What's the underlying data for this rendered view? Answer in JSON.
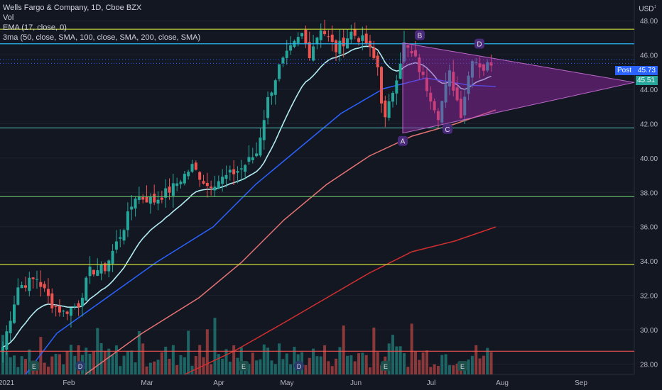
{
  "header": {
    "title": "Wells Fargo & Company, 1D, Cboe BZX",
    "indicators": [
      "Vol",
      "EMA (17, close, 0)",
      "3ma (50, close, SMA, 100, close, SMA, 200, close, SMA)"
    ],
    "currency": "USD"
  },
  "badges": {
    "post_label": "Post",
    "post_value": "45.73",
    "last_value": "45.51"
  },
  "colors": {
    "background": "#131722",
    "up": "#26a69a",
    "down": "#ef5350",
    "ema": "#b2ebf2",
    "ma50": "#2962ff",
    "ma100": "#e57373",
    "ma200": "#d32f2f",
    "triangle": "#9c27b0"
  },
  "chart_data": {
    "type": "candlestick",
    "y_axis": {
      "min": 27.4,
      "max": 49.2,
      "ticks": [
        28,
        30,
        32,
        34,
        36,
        38,
        40,
        42,
        44,
        46,
        48
      ]
    },
    "x_axis": {
      "labels": [
        "2021",
        "Feb",
        "Mar",
        "Apr",
        "May",
        "Jun",
        "Jul",
        "Aug",
        "Sep"
      ]
    },
    "horizontal_levels": [
      {
        "value": 47.5,
        "color": "#cddc39"
      },
      {
        "value": 46.65,
        "color": "#29b6f6"
      },
      {
        "value": 41.75,
        "color": "#4db6ac"
      },
      {
        "value": 37.75,
        "color": "#66bb6a"
      },
      {
        "value": 33.8,
        "color": "#cddc39"
      },
      {
        "value": 28.75,
        "color": "#ef5350"
      }
    ],
    "pattern_points": [
      {
        "label": "A",
        "value": 41.45
      },
      {
        "label": "B",
        "value": 46.7
      },
      {
        "label": "C",
        "value": 42.15
      },
      {
        "label": "D",
        "value": 46.2
      }
    ],
    "triangle": {
      "upper_start": 46.7,
      "lower_start": 41.45,
      "apex": 44.4
    },
    "earnings_markers": [
      "E",
      "D",
      "E",
      "D",
      "E",
      "E"
    ],
    "price_path": [
      [
        0,
        29.0
      ],
      [
        4,
        32.5
      ],
      [
        9,
        33.0
      ],
      [
        13,
        31.5
      ],
      [
        16,
        31.0
      ],
      [
        20,
        31.5
      ],
      [
        23,
        33.4
      ],
      [
        27,
        33.6
      ],
      [
        32,
        36.0
      ],
      [
        35,
        37.8
      ],
      [
        40,
        37.5
      ],
      [
        45,
        38.3
      ],
      [
        50,
        39.5
      ],
      [
        54,
        38.4
      ],
      [
        58,
        38.8
      ],
      [
        63,
        39.4
      ],
      [
        67,
        40.3
      ],
      [
        70,
        43.4
      ],
      [
        73,
        45.3
      ],
      [
        76,
        46.3
      ],
      [
        79,
        47.2
      ],
      [
        81,
        46.1
      ],
      [
        84,
        47.6
      ],
      [
        88,
        46.3
      ],
      [
        92,
        47.3
      ],
      [
        96,
        46.7
      ],
      [
        99,
        45.3
      ],
      [
        100,
        43.4
      ],
      [
        101,
        42.2
      ],
      [
        104,
        44.8
      ],
      [
        106,
        46.6
      ],
      [
        109,
        45.7
      ],
      [
        112,
        44.1
      ],
      [
        115,
        42.5
      ],
      [
        118,
        44.9
      ],
      [
        121,
        42.6
      ],
      [
        124,
        45.9
      ],
      [
        127,
        45.2
      ],
      [
        129,
        45.6
      ]
    ]
  }
}
